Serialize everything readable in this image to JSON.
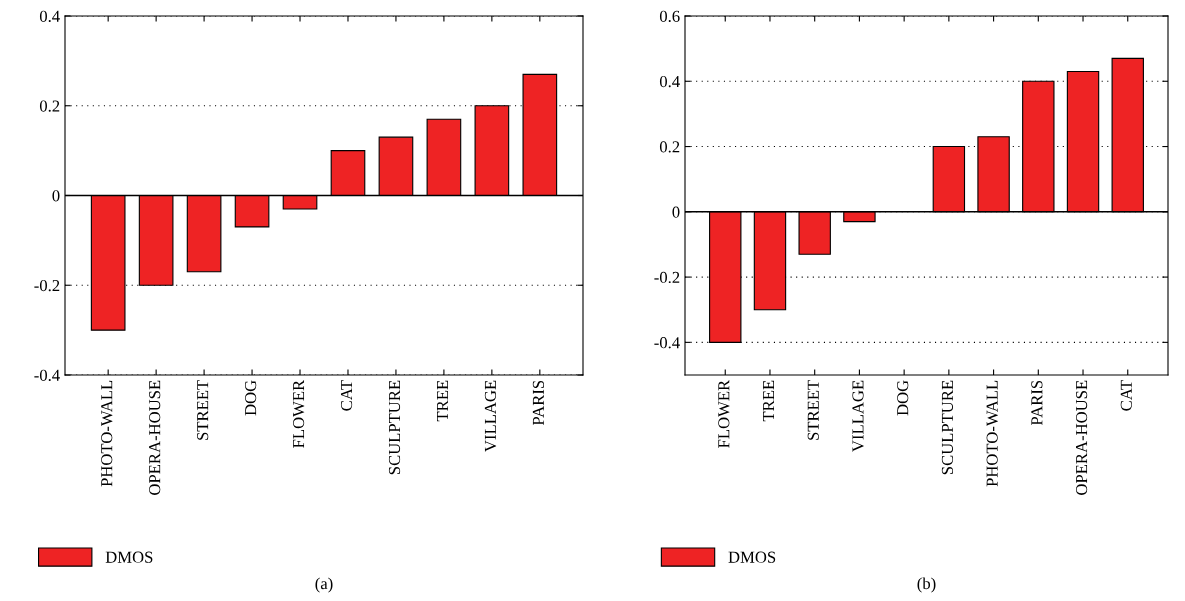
{
  "chart_data": [
    {
      "type": "bar",
      "categories": [
        "PHOTO-WALL",
        "OPERA-HOUSE",
        "STREET",
        "DOG",
        "FLOWER",
        "CAT",
        "SCULPTURE",
        "TREE",
        "VILLAGE",
        "PARIS"
      ],
      "series": [
        {
          "name": "DMOS",
          "color": "#ee2324",
          "values": [
            -0.3,
            -0.2,
            -0.17,
            -0.07,
            -0.03,
            0.1,
            0.13,
            0.17,
            0.2,
            0.27
          ]
        }
      ],
      "ylim": [
        -0.4,
        0.4
      ],
      "yticks": [
        -0.4,
        -0.2,
        0,
        0.2,
        0.4
      ],
      "grid": "y",
      "legend": "bottom left",
      "ref_lines": [
        {
          "axis": "y",
          "value": 0
        }
      ],
      "annotations": [
        "(a)"
      ]
    },
    {
      "type": "bar",
      "categories": [
        "FLOWER",
        "TREE",
        "STREET",
        "VILLAGE",
        "DOG",
        "SCULPTURE",
        "PHOTO-WALL",
        "PARIS",
        "OPERA-HOUSE",
        "CAT"
      ],
      "series": [
        {
          "name": "DMOS",
          "color": "#ee2324",
          "values": [
            -0.4,
            -0.3,
            -0.13,
            -0.03,
            null,
            0.2,
            0.23,
            0.4,
            0.43,
            0.47
          ]
        }
      ],
      "ylim": [
        -0.5,
        0.6
      ],
      "yticks": [
        -0.4,
        -0.2,
        0,
        0.2,
        0.4,
        0.6
      ],
      "grid": "y",
      "legend": "bottom left",
      "ref_lines": [
        {
          "axis": "y",
          "value": 0
        }
      ],
      "annotations": [
        "(b)"
      ]
    }
  ]
}
